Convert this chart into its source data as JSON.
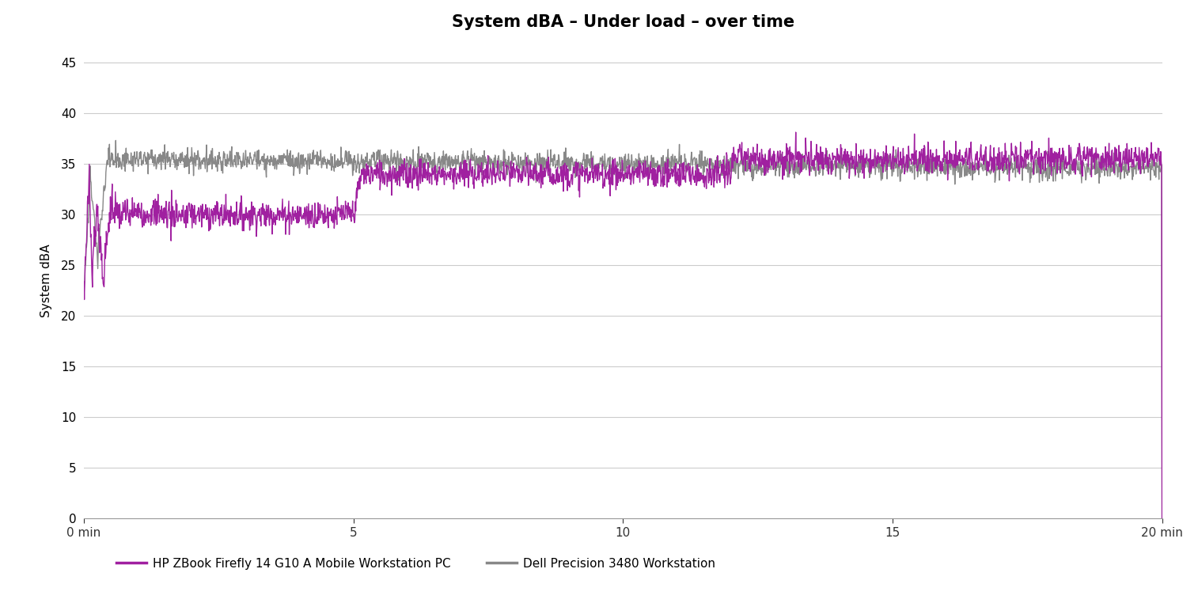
{
  "title": "System dBA – Under load – over time",
  "ylabel": "System dBA",
  "xlabel_ticks": [
    0,
    5,
    10,
    15,
    20
  ],
  "xlabel_tick_labels": [
    "0 min",
    "5",
    "10",
    "15",
    "20 min"
  ],
  "ylim": [
    0,
    47
  ],
  "xlim": [
    0,
    20
  ],
  "yticks": [
    0,
    5,
    10,
    15,
    20,
    25,
    30,
    35,
    40,
    45
  ],
  "hp_color": "#a020a0",
  "dell_color": "#888888",
  "hp_label": "HP ZBook Firefly 14 G10 A Mobile Workstation PC",
  "dell_label": "Dell Precision 3480 Workstation",
  "background_color": "#ffffff",
  "grid_color": "#cccccc",
  "title_fontsize": 15,
  "axis_label_fontsize": 11,
  "tick_fontsize": 11,
  "legend_fontsize": 11,
  "line_width": 1.0,
  "total_minutes": 20,
  "samples_per_minute": 120
}
